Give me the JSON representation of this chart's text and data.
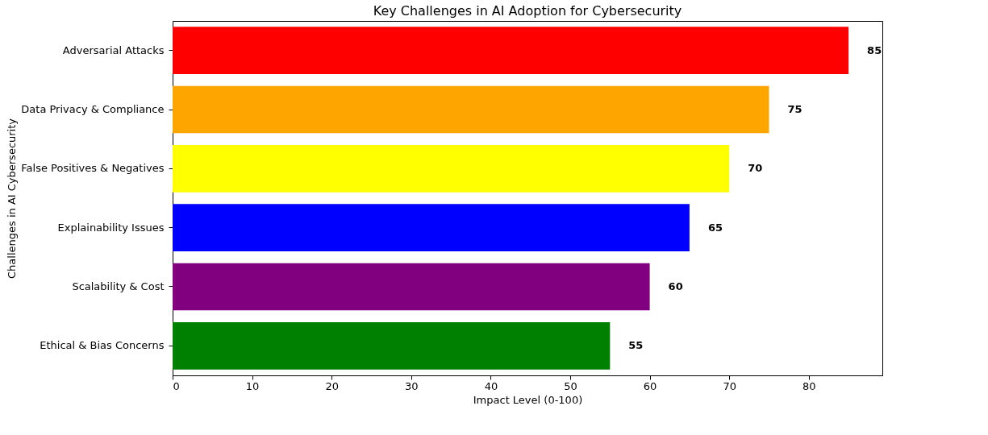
{
  "chart_data": {
    "type": "bar",
    "orientation": "horizontal",
    "title": "Key Challenges in AI Adoption for Cybersecurity",
    "xlabel": "Impact Level (0-100)",
    "ylabel": "Challenges in AI Cybersecurity",
    "categories": [
      "Adversarial Attacks",
      "Data Privacy & Compliance",
      "False Positives & Negatives",
      "Explainability Issues",
      "Scalability & Cost",
      "Ethical & Bias Concerns"
    ],
    "values": [
      85,
      75,
      70,
      65,
      60,
      55
    ],
    "colors": [
      "#ff0000",
      "#ffa500",
      "#ffff00",
      "#0000ff",
      "#800080",
      "#008000"
    ],
    "xlim": [
      0,
      89.25
    ],
    "xticks": [
      0,
      10,
      20,
      30,
      40,
      50,
      60,
      70,
      80
    ],
    "data_labels": true,
    "grid": false,
    "legend": false
  }
}
